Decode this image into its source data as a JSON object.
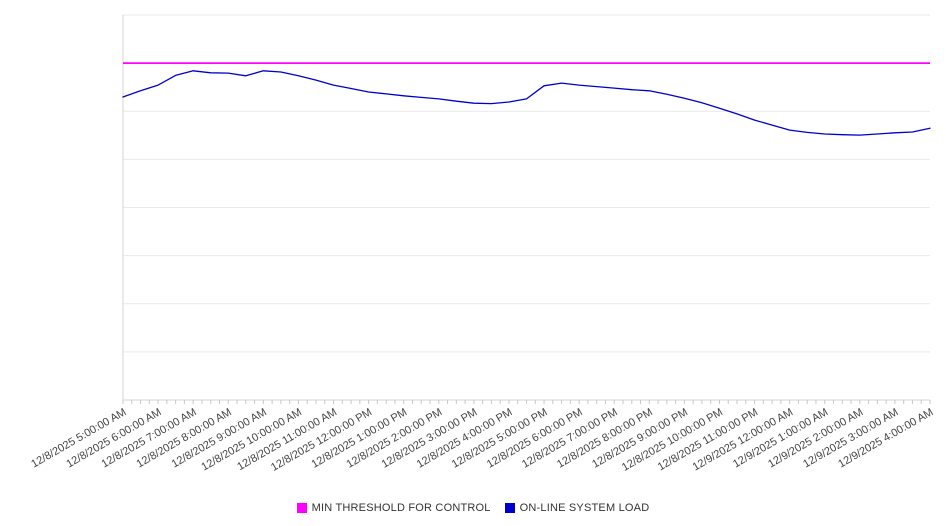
{
  "legend": {
    "items": [
      {
        "label": "MIN THRESHOLD FOR CONTROL",
        "color": "#ff00ff"
      },
      {
        "label": "ON-LINE SYSTEM LOAD",
        "color": "#0000cc"
      }
    ]
  },
  "colors": {
    "background": "#ffffff",
    "gridline": "#e9e9e9",
    "axis": "#d4d4d4",
    "tick": "#c8c8c8",
    "label_text": "#444444",
    "threshold_line": "#ff00ff",
    "load_line": "#0000cc"
  },
  "chart_data": {
    "type": "line",
    "title": "",
    "xlabel": "",
    "ylabel": "",
    "ylim": [
      0,
      100
    ],
    "y_gridline_step": 12.5,
    "grid": true,
    "legend_position": "bottom",
    "x_tick_labels": [
      "12/8/2025 5:00:00 AM",
      "12/8/2025 6:00:00 AM",
      "12/8/2025 7:00:00 AM",
      "12/8/2025 8:00:00 AM",
      "12/8/2025 9:00:00 AM",
      "12/8/2025 10:00:00 AM",
      "12/8/2025 11:00:00 AM",
      "12/8/2025 12:00:00 PM",
      "12/8/2025 1:00:00 PM",
      "12/8/2025 2:00:00 PM",
      "12/8/2025 3:00:00 PM",
      "12/8/2025 4:00:00 PM",
      "12/8/2025 5:00:00 PM",
      "12/8/2025 6:00:00 PM",
      "12/8/2025 7:00:00 PM",
      "12/8/2025 8:00:00 PM",
      "12/8/2025 9:00:00 PM",
      "12/8/2025 10:00:00 PM",
      "12/8/2025 11:00:00 PM",
      "12/9/2025 12:00:00 AM",
      "12/9/2025 1:00:00 AM",
      "12/9/2025 2:00:00 AM",
      "12/9/2025 3:00:00 AM",
      "12/9/2025 4:00:00 AM"
    ],
    "points_per_hour": 2,
    "minor_ticks_per_hour": 4,
    "series": [
      {
        "name": "MIN THRESHOLD FOR CONTROL",
        "type": "threshold",
        "color": "#ff00ff",
        "value": 87.5
      },
      {
        "name": "ON-LINE SYSTEM LOAD",
        "type": "line",
        "color": "#0000cc",
        "values": [
          78.7,
          80.3,
          81.8,
          84.3,
          85.5,
          85.0,
          84.9,
          84.2,
          85.5,
          85.2,
          84.2,
          83.1,
          81.8,
          80.9,
          80.0,
          79.5,
          79.0,
          78.6,
          78.2,
          77.6,
          77.1,
          77.0,
          77.4,
          78.2,
          81.6,
          82.3,
          81.8,
          81.4,
          81.0,
          80.6,
          80.3,
          79.4,
          78.4,
          77.2,
          75.8,
          74.3,
          72.7,
          71.4,
          70.1,
          69.5,
          69.1,
          68.9,
          68.8,
          69.1,
          69.4,
          69.6,
          70.6
        ]
      }
    ]
  }
}
